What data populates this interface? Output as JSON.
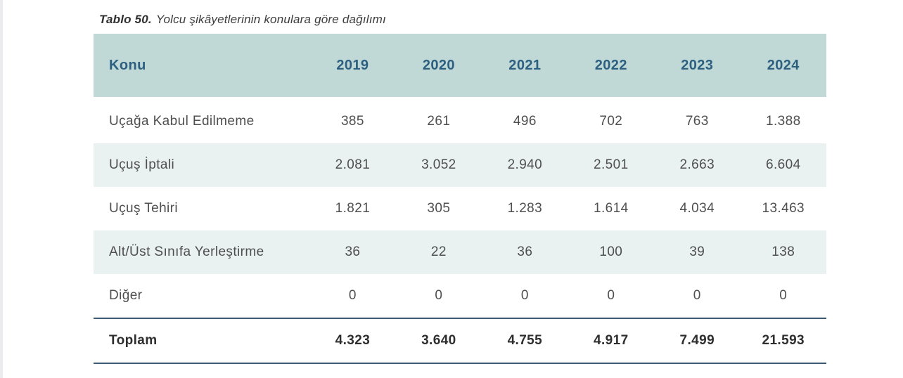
{
  "title": {
    "number": "Tablo 50.",
    "caption": "Yolcu şikâyetlerinin konulara göre dağılımı"
  },
  "table": {
    "columns": [
      "Konu",
      "2019",
      "2020",
      "2021",
      "2022",
      "2023",
      "2024"
    ],
    "rows": [
      {
        "konu": "Uçağa Kabul Edilmeme",
        "values": [
          "385",
          "261",
          "496",
          "702",
          "763",
          "1.388"
        ]
      },
      {
        "konu": "Uçuş İptali",
        "values": [
          "2.081",
          "3.052",
          "2.940",
          "2.501",
          "2.663",
          "6.604"
        ]
      },
      {
        "konu": "Uçuş Tehiri",
        "values": [
          "1.821",
          "305",
          "1.283",
          "1.614",
          "4.034",
          "13.463"
        ]
      },
      {
        "konu": "Alt/Üst Sınıfa Yerleştirme",
        "values": [
          "36",
          "22",
          "36",
          "100",
          "39",
          "138"
        ]
      },
      {
        "konu": "Diğer",
        "values": [
          "0",
          "0",
          "0",
          "0",
          "0",
          "0"
        ]
      }
    ],
    "total": {
      "konu": "Toplam",
      "values": [
        "4.323",
        "3.640",
        "4.755",
        "4.917",
        "7.499",
        "21.593"
      ]
    }
  },
  "colors": {
    "header_bg": "#c0d9d6",
    "header_text": "#2d5f80",
    "stripe_bg": "#e9f2f0",
    "body_text": "#4f4f4f",
    "total_text": "#2e2e2e",
    "rule": "#3c5a76"
  }
}
